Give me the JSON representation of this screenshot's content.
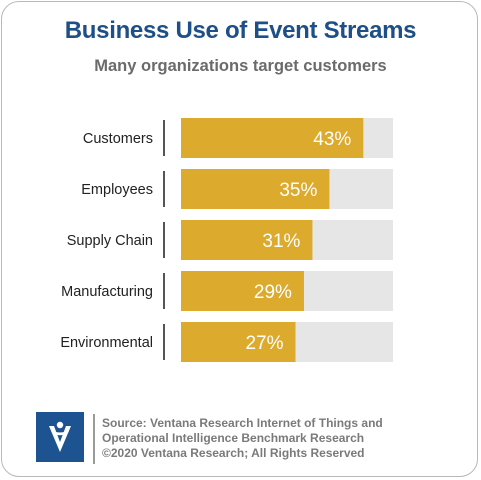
{
  "header": {
    "title": "Business Use of Event Streams",
    "subtitle": "Many organizations target customers"
  },
  "chart_data": {
    "type": "bar",
    "orientation": "horizontal",
    "categories": [
      "Customers",
      "Employees",
      "Supply Chain",
      "Manufacturing",
      "Environmental"
    ],
    "values": [
      43,
      35,
      31,
      29,
      27
    ],
    "value_labels": [
      "43%",
      "35%",
      "31%",
      "29%",
      "27%"
    ],
    "xlim": [
      0,
      50
    ],
    "grid": false,
    "legend": "none",
    "colors": {
      "bar": "#dcaa2c",
      "track": "#e6e6e6",
      "label_text": "#ffffff",
      "category_text": "#222222"
    }
  },
  "footer": {
    "source_lines": [
      "Source: Ventana Research Internet of Things and",
      "Operational Intelligence Benchmark Research",
      "©2020 Ventana Research; All Rights Reserved"
    ],
    "logo_icon": "ventana-v-logo",
    "logo_color": "#1e5391"
  }
}
